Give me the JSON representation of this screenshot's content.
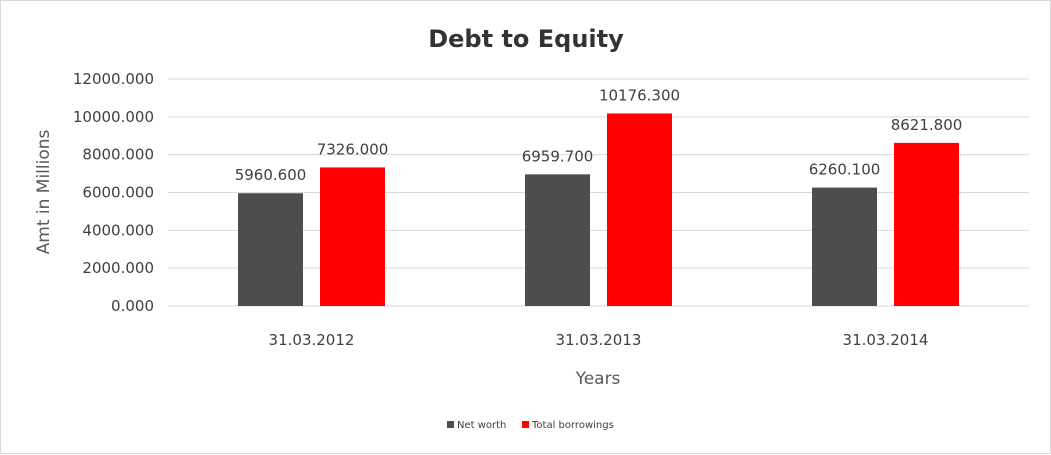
{
  "chart_data": {
    "type": "bar",
    "title": "Debt to Equity",
    "xlabel": "Years",
    "ylabel": "Amt in Millions",
    "categories": [
      "31.03.2012",
      "31.03.2013",
      "31.03.2014"
    ],
    "series": [
      {
        "name": "Net worth",
        "values": [
          5960.6,
          6959.7,
          6260.1
        ],
        "labels": [
          "5960.600",
          "6959.700",
          "6260.100"
        ],
        "color": "#4d4d4d"
      },
      {
        "name": "Total borrowings",
        "values": [
          7326.0,
          10176.3,
          8621.8
        ],
        "labels": [
          "7326.000",
          "10176.300",
          "8621.800"
        ],
        "color": "#ff0000"
      }
    ],
    "ylim": [
      0,
      12000
    ],
    "yticks": [
      "0.000",
      "2000.000",
      "4000.000",
      "6000.000",
      "8000.000",
      "10000.000",
      "12000.000"
    ],
    "ytick_values": [
      0,
      2000,
      4000,
      6000,
      8000,
      10000,
      12000
    ],
    "grid": true,
    "legend_position": "bottom"
  }
}
